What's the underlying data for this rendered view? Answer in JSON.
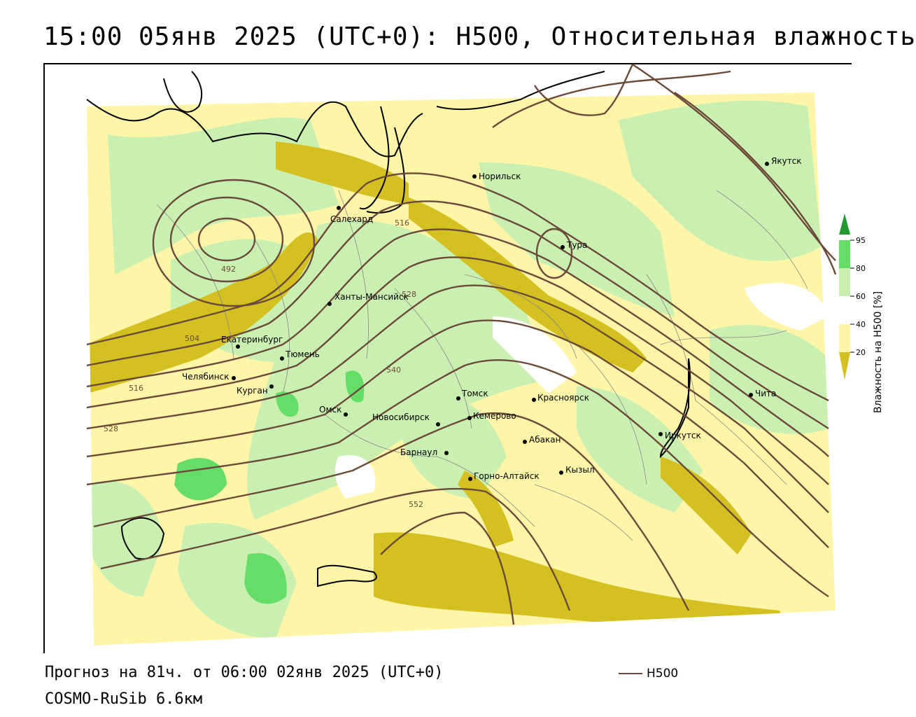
{
  "title": "15:00 05янв 2025 (UTC+0): H500, Относительная влажность",
  "footer": {
    "forecast": "Прогноз на 81ч. от 06:00 02янв 2025 (UTC+0)",
    "model": "COSMO-RuSib 6.6км"
  },
  "legend": {
    "h500_label": "H500",
    "h500_color": "#6b4a3a"
  },
  "colorbar": {
    "title": "Влажность на H500 [%]",
    "ticks": [
      "20",
      "40",
      "60",
      "80",
      "95"
    ],
    "colors": {
      "lt20": "#d4c020",
      "20_40": "#fff5a8",
      "40_60": "#ffffff",
      "60_80": "#c9f0b0",
      "80_95": "#66dd66",
      "gt95": "#229933"
    }
  },
  "cities": [
    {
      "name": "Норильск",
      "id": "norilsk"
    },
    {
      "name": "Якутск",
      "id": "yakutsk"
    },
    {
      "name": "Салехард",
      "id": "salekhard"
    },
    {
      "name": "Тура",
      "id": "tura"
    },
    {
      "name": "Ханты-Мансийск",
      "id": "khanty"
    },
    {
      "name": "Екатеринбург",
      "id": "ekb"
    },
    {
      "name": "Тюмень",
      "id": "tyumen"
    },
    {
      "name": "Челябинск",
      "id": "chelyabinsk"
    },
    {
      "name": "Курган",
      "id": "kurgan"
    },
    {
      "name": "Омск",
      "id": "omsk"
    },
    {
      "name": "Новосибирск",
      "id": "novosibirsk"
    },
    {
      "name": "Томск",
      "id": "tomsk"
    },
    {
      "name": "Кемерово",
      "id": "kemerovo"
    },
    {
      "name": "Красноярск",
      "id": "krasnoyarsk"
    },
    {
      "name": "Абакан",
      "id": "abakan"
    },
    {
      "name": "Барнаул",
      "id": "barnaul"
    },
    {
      "name": "Горно-Алтайск",
      "id": "gorno"
    },
    {
      "name": "Кызыл",
      "id": "kyzyl"
    },
    {
      "name": "Иркутск",
      "id": "irkutsk"
    },
    {
      "name": "Чита",
      "id": "chita"
    }
  ],
  "contour_labels": [
    "492",
    "504",
    "516",
    "516",
    "528",
    "528",
    "540",
    "552"
  ]
}
